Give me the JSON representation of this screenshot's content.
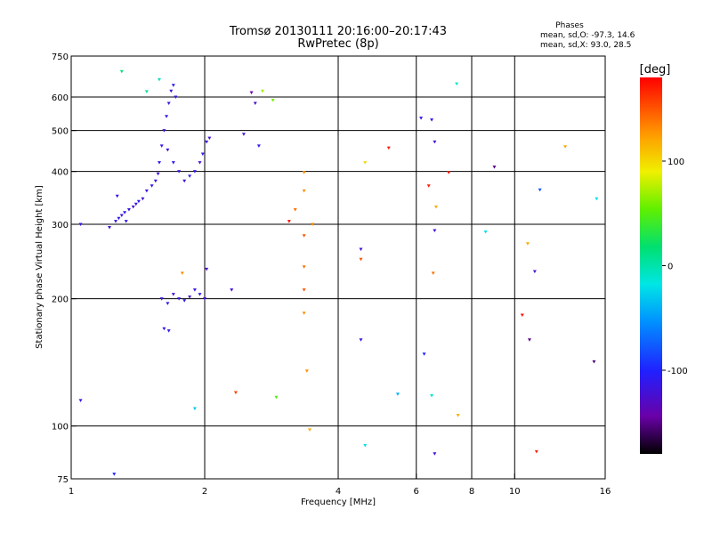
{
  "chart_data": {
    "type": "scatter",
    "title": "Tromsø 20130111 20:16:00–20:17:43",
    "subtitle": "RwPretec (8p)",
    "xlabel": "Frequency [MHz]",
    "ylabel": "Stationary phase Virtual Height [km]",
    "x_scale": "log",
    "y_scale": "log",
    "xlim": [
      1,
      16
    ],
    "ylim": [
      75,
      750
    ],
    "x_ticks": [
      "1",
      "2",
      "4",
      "6",
      "8",
      "10",
      "16"
    ],
    "x_tick_values": [
      1,
      2,
      4,
      6,
      8,
      10,
      16
    ],
    "y_ticks": [
      "75",
      "100",
      "200",
      "300",
      "400",
      "500",
      "600",
      "750"
    ],
    "y_tick_values": [
      75,
      100,
      200,
      300,
      400,
      500,
      600,
      750
    ],
    "x_gridlines": [
      2,
      4,
      6,
      8,
      10
    ],
    "y_gridlines": [
      100,
      200,
      300,
      400,
      500,
      600
    ],
    "grid": true,
    "stats": {
      "header": "Phases",
      "line1": "mean, sd,O: -97.3, 14.6",
      "line2": "mean, sd,X:  93.0, 28.5"
    },
    "colorbar": {
      "label": "[deg]",
      "range": [
        -180,
        180
      ],
      "ticks": [
        "100",
        "0",
        "-100"
      ],
      "tick_values": [
        100,
        0,
        -100
      ]
    },
    "series": [
      {
        "points": [
          [
            1.05,
            300,
            -110
          ],
          [
            1.22,
            295,
            -120
          ],
          [
            1.26,
            305,
            -115
          ],
          [
            1.3,
            315,
            -120
          ],
          [
            1.32,
            320,
            -110
          ],
          [
            1.35,
            325,
            -115
          ],
          [
            1.28,
            310,
            -110
          ],
          [
            1.38,
            330,
            -120
          ],
          [
            1.4,
            335,
            -115
          ],
          [
            1.42,
            340,
            -110
          ],
          [
            1.45,
            345,
            -120
          ],
          [
            1.33,
            305,
            -110
          ],
          [
            1.27,
            350,
            -115
          ],
          [
            1.48,
            360,
            -120
          ],
          [
            1.52,
            370,
            -110
          ],
          [
            1.55,
            380,
            -115
          ],
          [
            1.57,
            395,
            -120
          ],
          [
            1.58,
            420,
            -110
          ],
          [
            1.6,
            460,
            -115
          ],
          [
            1.62,
            500,
            -120
          ],
          [
            1.64,
            540,
            -110
          ],
          [
            1.66,
            580,
            -115
          ],
          [
            1.68,
            620,
            -120
          ],
          [
            1.7,
            640,
            -110
          ],
          [
            1.72,
            600,
            -115
          ],
          [
            1.65,
            450,
            -120
          ],
          [
            1.7,
            420,
            -110
          ],
          [
            1.75,
            400,
            -115
          ],
          [
            1.8,
            380,
            -120
          ],
          [
            1.85,
            390,
            -110
          ],
          [
            1.9,
            400,
            -115
          ],
          [
            1.95,
            420,
            -120
          ],
          [
            1.98,
            440,
            -110
          ],
          [
            2.02,
            470,
            -115
          ],
          [
            2.05,
            480,
            -120
          ],
          [
            1.6,
            200,
            -115
          ],
          [
            1.65,
            195,
            -110
          ],
          [
            1.7,
            205,
            -120
          ],
          [
            1.75,
            200,
            -115
          ],
          [
            1.8,
            198,
            -110
          ],
          [
            1.85,
            202,
            -120
          ],
          [
            1.9,
            210,
            -115
          ],
          [
            1.95,
            205,
            -110
          ],
          [
            2.0,
            200,
            -120
          ],
          [
            2.02,
            235,
            -125
          ],
          [
            1.62,
            170,
            -115
          ],
          [
            1.66,
            168,
            -110
          ],
          [
            1.05,
            115,
            -115
          ],
          [
            1.25,
            77,
            -100
          ],
          [
            1.3,
            690,
            15
          ],
          [
            1.48,
            618,
            5
          ],
          [
            1.58,
            660,
            -5
          ],
          [
            1.9,
            110,
            -30
          ],
          [
            1.78,
            230,
            130
          ],
          [
            2.3,
            210,
            -120
          ],
          [
            2.35,
            120,
            160
          ],
          [
            2.45,
            490,
            -120
          ],
          [
            2.55,
            615,
            -140
          ],
          [
            2.6,
            580,
            -125
          ],
          [
            2.65,
            460,
            -110
          ],
          [
            2.7,
            620,
            70
          ],
          [
            2.85,
            590,
            60
          ],
          [
            2.9,
            117,
            50
          ],
          [
            3.1,
            305,
            175
          ],
          [
            3.2,
            325,
            140
          ],
          [
            3.35,
            398,
            130
          ],
          [
            3.35,
            360,
            130
          ],
          [
            3.35,
            282,
            150
          ],
          [
            3.35,
            238,
            140
          ],
          [
            3.35,
            210,
            150
          ],
          [
            3.35,
            185,
            130
          ],
          [
            3.4,
            135,
            130
          ],
          [
            3.45,
            98,
            120
          ],
          [
            3.5,
            300,
            130
          ],
          [
            4.5,
            262,
            -120
          ],
          [
            4.5,
            248,
            150
          ],
          [
            4.5,
            160,
            -115
          ],
          [
            4.6,
            90,
            -20
          ],
          [
            4.6,
            420,
            100
          ],
          [
            5.2,
            455,
            170
          ],
          [
            5.45,
            119,
            -40
          ],
          [
            6.15,
            535,
            -115
          ],
          [
            6.25,
            148,
            -100
          ],
          [
            6.4,
            370,
            170
          ],
          [
            6.5,
            530,
            -115
          ],
          [
            6.6,
            470,
            -120
          ],
          [
            6.65,
            330,
            120
          ],
          [
            6.6,
            290,
            -120
          ],
          [
            6.55,
            230,
            140
          ],
          [
            6.5,
            118,
            -10
          ],
          [
            6.6,
            86,
            -120
          ],
          [
            7.1,
            398,
            175
          ],
          [
            7.4,
            645,
            -10
          ],
          [
            7.45,
            106,
            120
          ],
          [
            8.6,
            288,
            -20
          ],
          [
            9.0,
            410,
            -150
          ],
          [
            10.4,
            183,
            175
          ],
          [
            10.7,
            270,
            120
          ],
          [
            10.8,
            160,
            -150
          ],
          [
            11.1,
            232,
            -120
          ],
          [
            11.2,
            87,
            170
          ],
          [
            11.4,
            362,
            -80
          ],
          [
            13.0,
            458,
            120
          ],
          [
            15.3,
            345,
            -20
          ],
          [
            15.1,
            142,
            -155
          ]
        ]
      }
    ]
  }
}
